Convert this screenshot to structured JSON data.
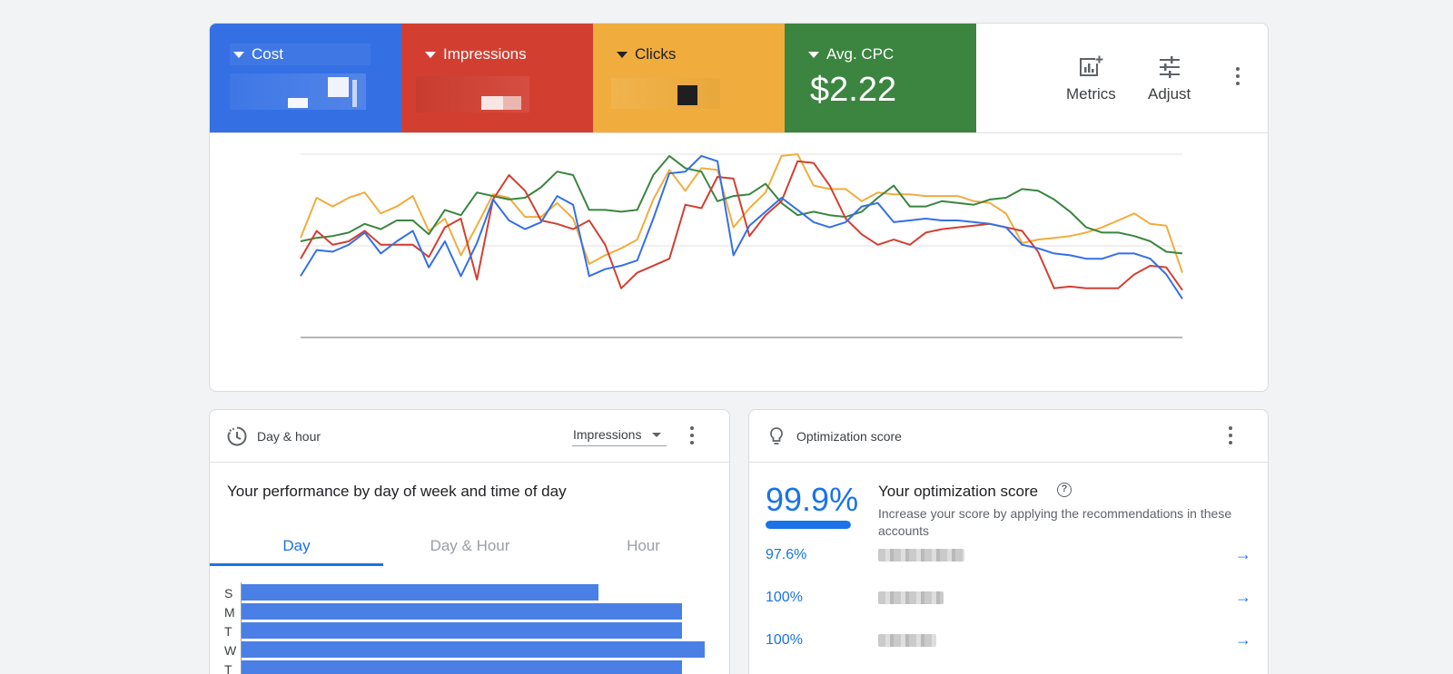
{
  "performance": {
    "tiles": [
      {
        "label": "Cost",
        "value": "",
        "color": "#3470e4"
      },
      {
        "label": "Impressions",
        "value": "",
        "color": "#d23f31"
      },
      {
        "label": "Clicks",
        "value": "",
        "color": "#f0ad3d"
      },
      {
        "label": "Avg. CPC",
        "value": "$2.22",
        "color": "#3b8540"
      }
    ],
    "metrics_label": "Metrics",
    "adjust_label": "Adjust"
  },
  "chart_data": {
    "type": "line",
    "title": "",
    "xlabel": "",
    "ylabel": "",
    "grid": true,
    "legend": "none",
    "ylim": [
      0,
      100
    ],
    "series": [
      {
        "color": "#f0ad3d",
        "values": [
          52,
          75,
          70,
          75,
          78,
          66,
          70,
          76,
          56,
          63,
          42,
          59,
          77,
          75,
          64,
          64,
          72,
          63,
          37,
          42,
          46,
          51,
          74,
          91,
          79,
          92,
          91,
          58,
          69,
          78,
          99,
          100,
          82,
          80,
          80,
          73,
          78,
          77,
          77,
          76,
          76,
          76,
          73,
          72,
          66,
          49,
          51,
          52,
          53,
          55,
          58,
          62,
          66,
          60,
          59,
          32
        ]
      },
      {
        "color": "#3b8540",
        "values": [
          50,
          52,
          53,
          55,
          60,
          57,
          62,
          62,
          54,
          68,
          65,
          78,
          76,
          74,
          75,
          81,
          90,
          88,
          68,
          68,
          67,
          68,
          88,
          99,
          92,
          90,
          73,
          76,
          77,
          83,
          72,
          65,
          67,
          65,
          64,
          67,
          75,
          82,
          70,
          70,
          73,
          72,
          71,
          74,
          75,
          80,
          79,
          74,
          67,
          58,
          55,
          55,
          53,
          50,
          44,
          43
        ]
      },
      {
        "color": "#d23f31",
        "values": [
          40,
          56,
          48,
          50,
          56,
          48,
          48,
          48,
          41,
          58,
          63,
          28,
          74,
          88,
          79,
          62,
          60,
          57,
          62,
          48,
          23,
          32,
          36,
          40,
          71,
          69,
          87,
          86,
          53,
          65,
          73,
          96,
          95,
          82,
          63,
          54,
          48,
          51,
          48,
          55,
          57,
          58,
          59,
          60,
          58,
          56,
          44,
          23,
          24,
          23,
          23,
          23,
          31,
          36,
          35,
          22
        ]
      },
      {
        "color": "#3470e4",
        "values": [
          30,
          45,
          44,
          48,
          55,
          43,
          50,
          56,
          35,
          50,
          30,
          49,
          74,
          62,
          57,
          61,
          76,
          71,
          30,
          34,
          36,
          39,
          63,
          89,
          90,
          99,
          96,
          42,
          59,
          67,
          75,
          68,
          61,
          58,
          61,
          70,
          72,
          61,
          62,
          63,
          62,
          62,
          61,
          60,
          58,
          48,
          46,
          43,
          42,
          40,
          40,
          43,
          43,
          40,
          31,
          17
        ]
      }
    ]
  },
  "day_hour": {
    "title": "Day & hour",
    "dropdown": "Impressions",
    "subtitle": "Your performance by day of week and time of day",
    "tabs": [
      "Day",
      "Day & Hour",
      "Hour"
    ],
    "active_tab": 0,
    "chart_data": {
      "type": "bar",
      "title": "",
      "xlabel": "",
      "ylabel": "",
      "categories": [
        "S",
        "M",
        "T",
        "W",
        "T"
      ],
      "values": [
        77,
        95,
        95,
        100,
        95
      ]
    }
  },
  "optimization": {
    "title": "Optimization score",
    "score": "99.9%",
    "score_fraction": 0.999,
    "heading": "Your optimization score",
    "help_glyph": "?",
    "description": "Increase your score by applying the recommendations in these accounts",
    "accounts": [
      {
        "score": "97.6%",
        "arrow": "→"
      },
      {
        "score": "100%",
        "arrow": "→"
      },
      {
        "score": "100%",
        "arrow": "→"
      }
    ]
  },
  "icons": {
    "metrics": "chart-plus-icon",
    "adjust": "sliders-icon",
    "day_hour": "clock-history-icon",
    "optimization": "lightbulb-icon",
    "more": "more-vert-icon"
  }
}
